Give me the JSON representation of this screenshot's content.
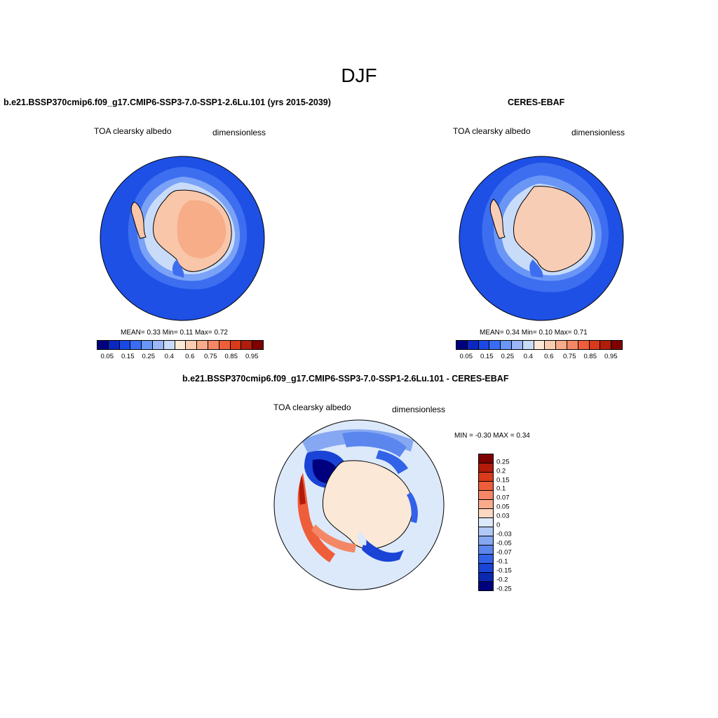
{
  "page": {
    "title": "DJF"
  },
  "panels": {
    "model": {
      "title": "b.e21.BSSP370cmip6.f09_g17.CMIP6-SSP3-7.0-SSP1-2.6Lu.101 (yrs 2015-2039)",
      "variable": "TOA clearsky albedo",
      "units": "dimensionless",
      "stats": "MEAN=   0.33   Min=    0.11   Max=    0.72"
    },
    "obs": {
      "title": "CERES-EBAF",
      "variable": "TOA clearsky albedo",
      "units": "dimensionless",
      "stats": "MEAN=   0.34   Min=    0.10   Max=    0.71"
    },
    "diff": {
      "title": "b.e21.BSSP370cmip6.f09_g17.CMIP6-SSP3-7.0-SSP1-2.6Lu.101 - CERES-EBAF",
      "variable": "TOA clearsky albedo",
      "units": "dimensionless",
      "stats": "MIN =   -0.30 MAX =    0.34"
    }
  },
  "colorbars": {
    "absolute": {
      "colors": [
        "#00007f",
        "#0a28bf",
        "#1a48e6",
        "#3a6cf2",
        "#6a96f6",
        "#9ab8f8",
        "#c8dcfa",
        "#fbe8d6",
        "#fbcdb0",
        "#f8ab8a",
        "#f48866",
        "#ee5e3a",
        "#d93a1a",
        "#b11d0c",
        "#7f0000"
      ],
      "labels": [
        "0.05",
        "0.15",
        "0.25",
        "0.4",
        "0.6",
        "0.75",
        "0.85",
        "0.95"
      ]
    },
    "difference": {
      "colors": [
        "#7f0000",
        "#b31a0a",
        "#d93a1a",
        "#ee5e3a",
        "#f48866",
        "#f8ab8a",
        "#fbd8c2",
        "#dce9fb",
        "#b0c8f6",
        "#86a8f2",
        "#5b86ee",
        "#3262e8",
        "#1a44d6",
        "#0a28b0",
        "#00007f"
      ],
      "labels": [
        "0.25",
        "0.2",
        "0.15",
        "0.1",
        "0.07",
        "0.05",
        "0.03",
        "0",
        "-0.03",
        "-0.05",
        "-0.07",
        "-0.1",
        "-0.15",
        "-0.2",
        "-0.25"
      ]
    }
  }
}
